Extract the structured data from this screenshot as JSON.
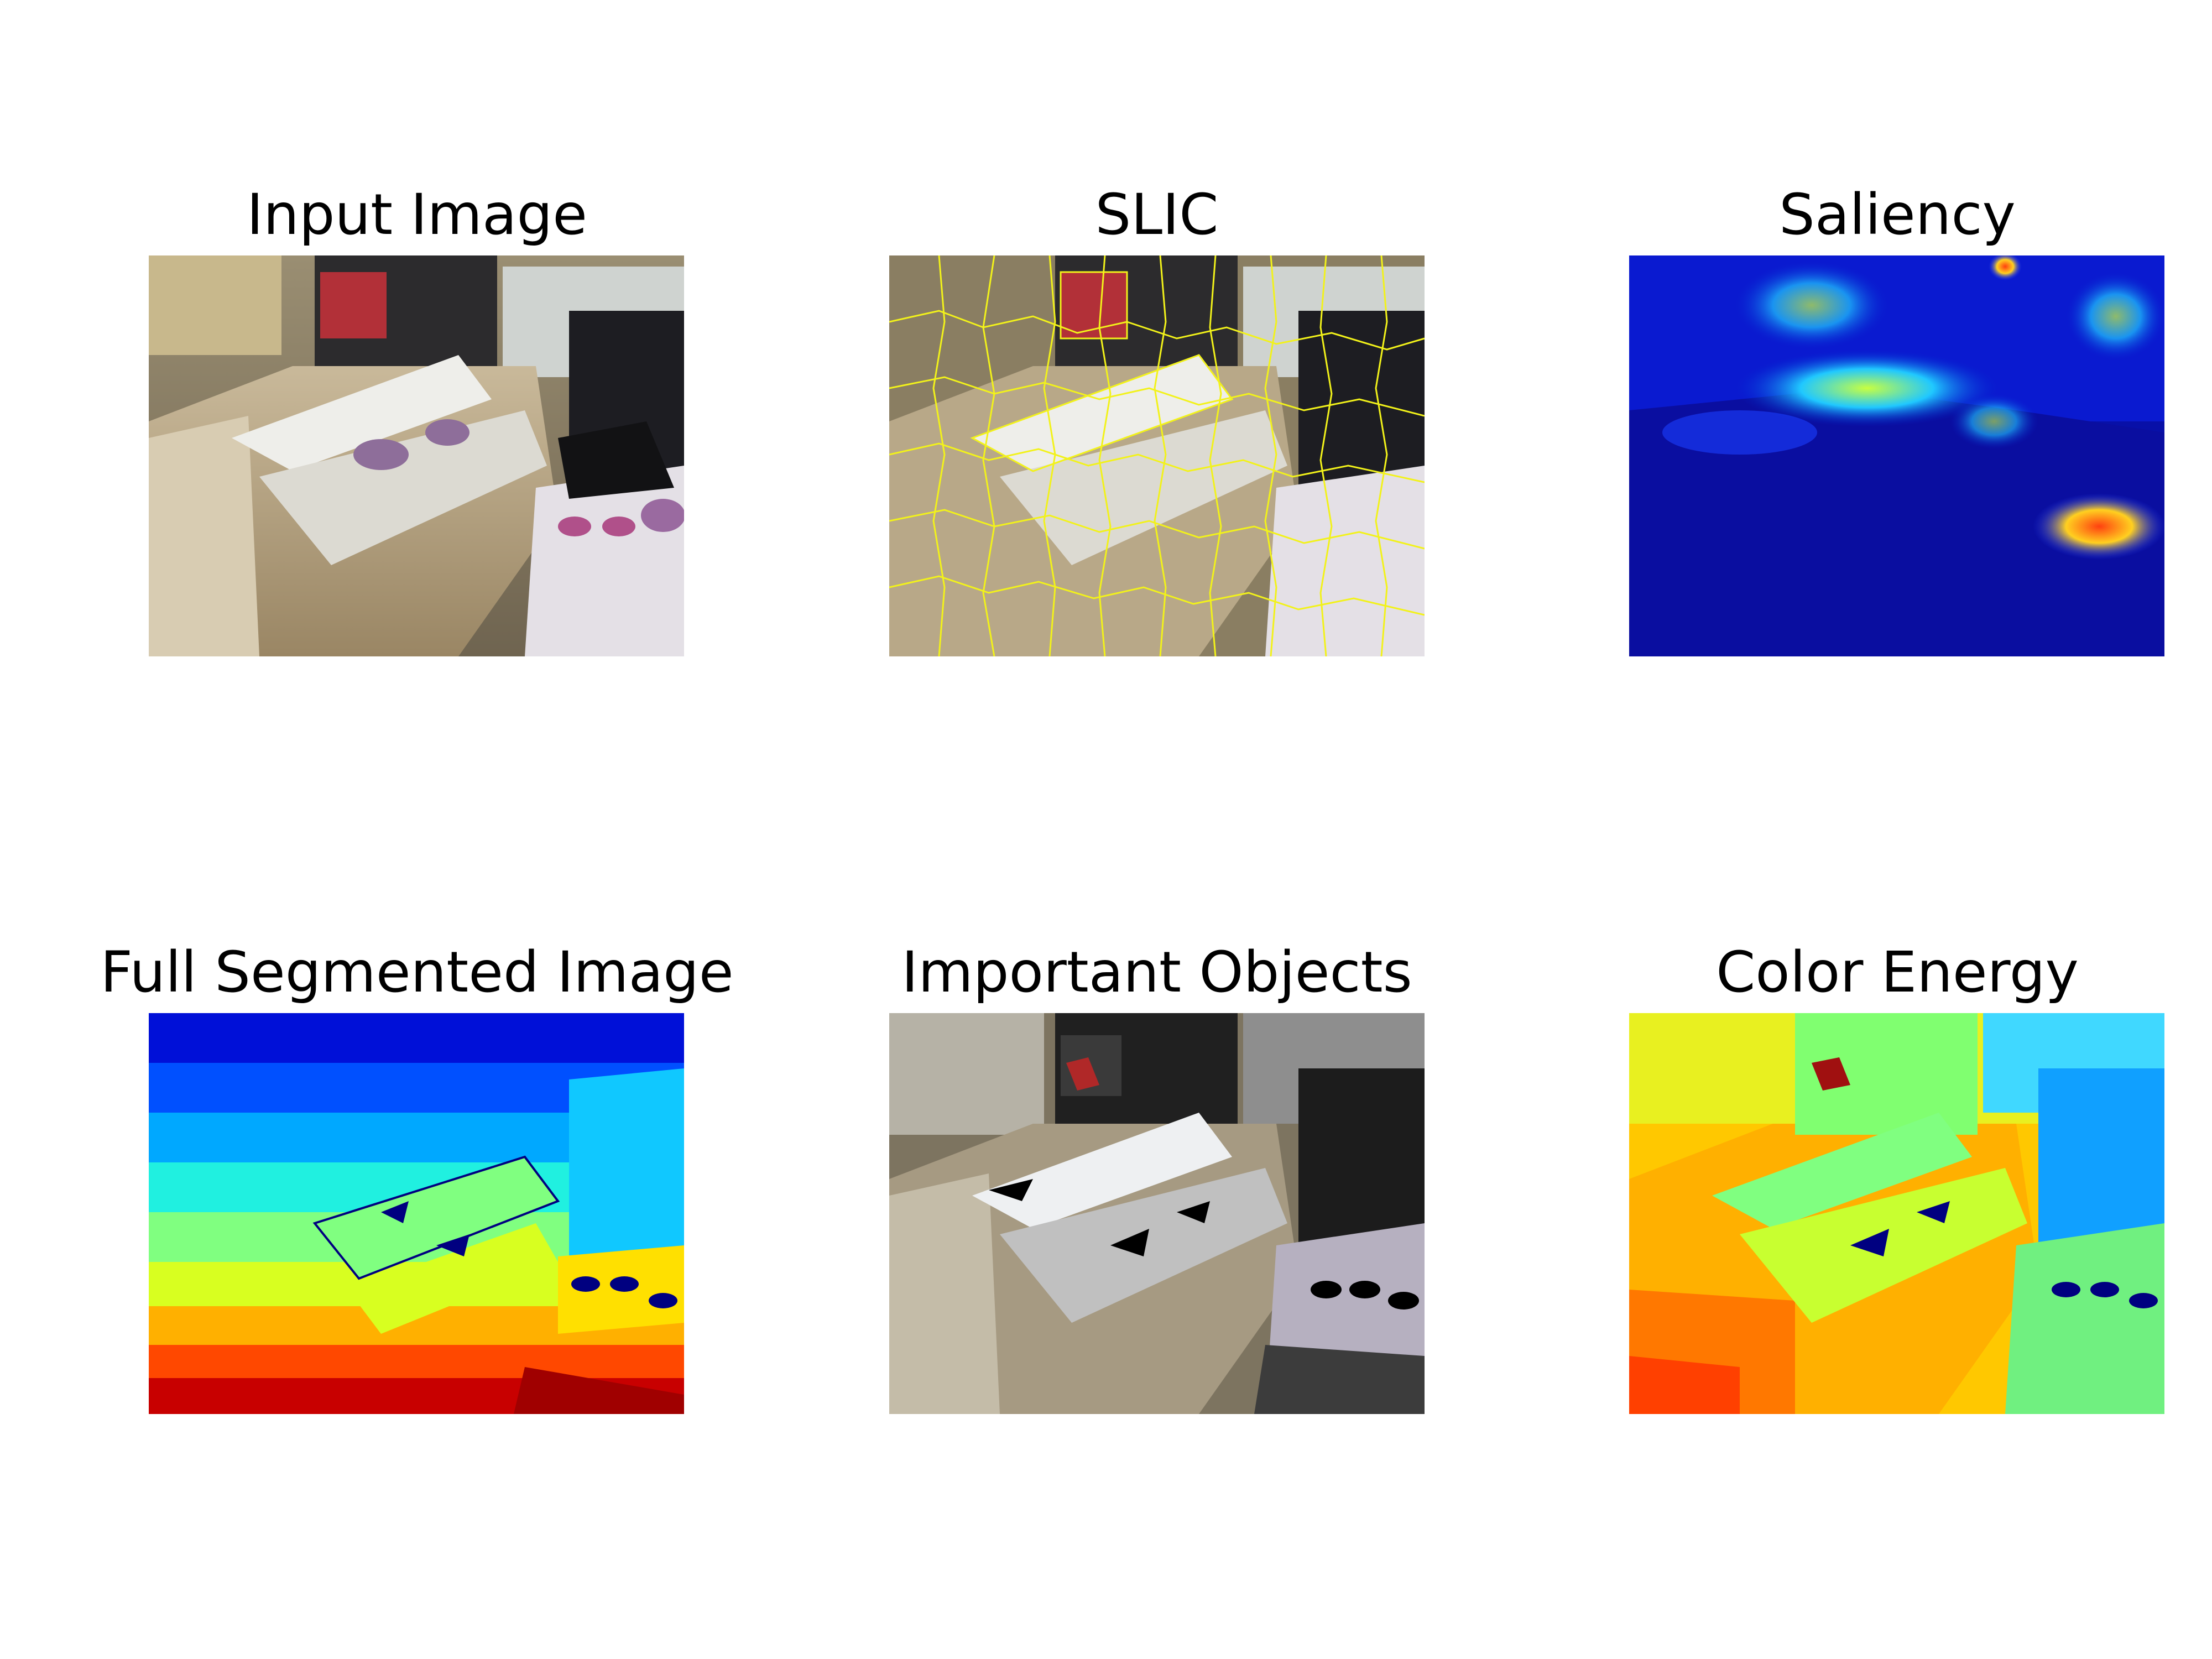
{
  "figure": {
    "panels": [
      {
        "id": "input",
        "title": "Input Image",
        "colormap": "natural"
      },
      {
        "id": "slic",
        "title": "SLIC",
        "colormap": "natural-with-yellow-superpixel-boundaries"
      },
      {
        "id": "saliency",
        "title": "Saliency",
        "colormap": "jet"
      },
      {
        "id": "full-segmented",
        "title": "Full Segmented Image",
        "colormap": "jet"
      },
      {
        "id": "important-objects",
        "title": "Important Objects",
        "colormap": "grayscale-with-red-accent"
      },
      {
        "id": "color-energy",
        "title": "Color Energy",
        "colormap": "jet"
      }
    ]
  }
}
